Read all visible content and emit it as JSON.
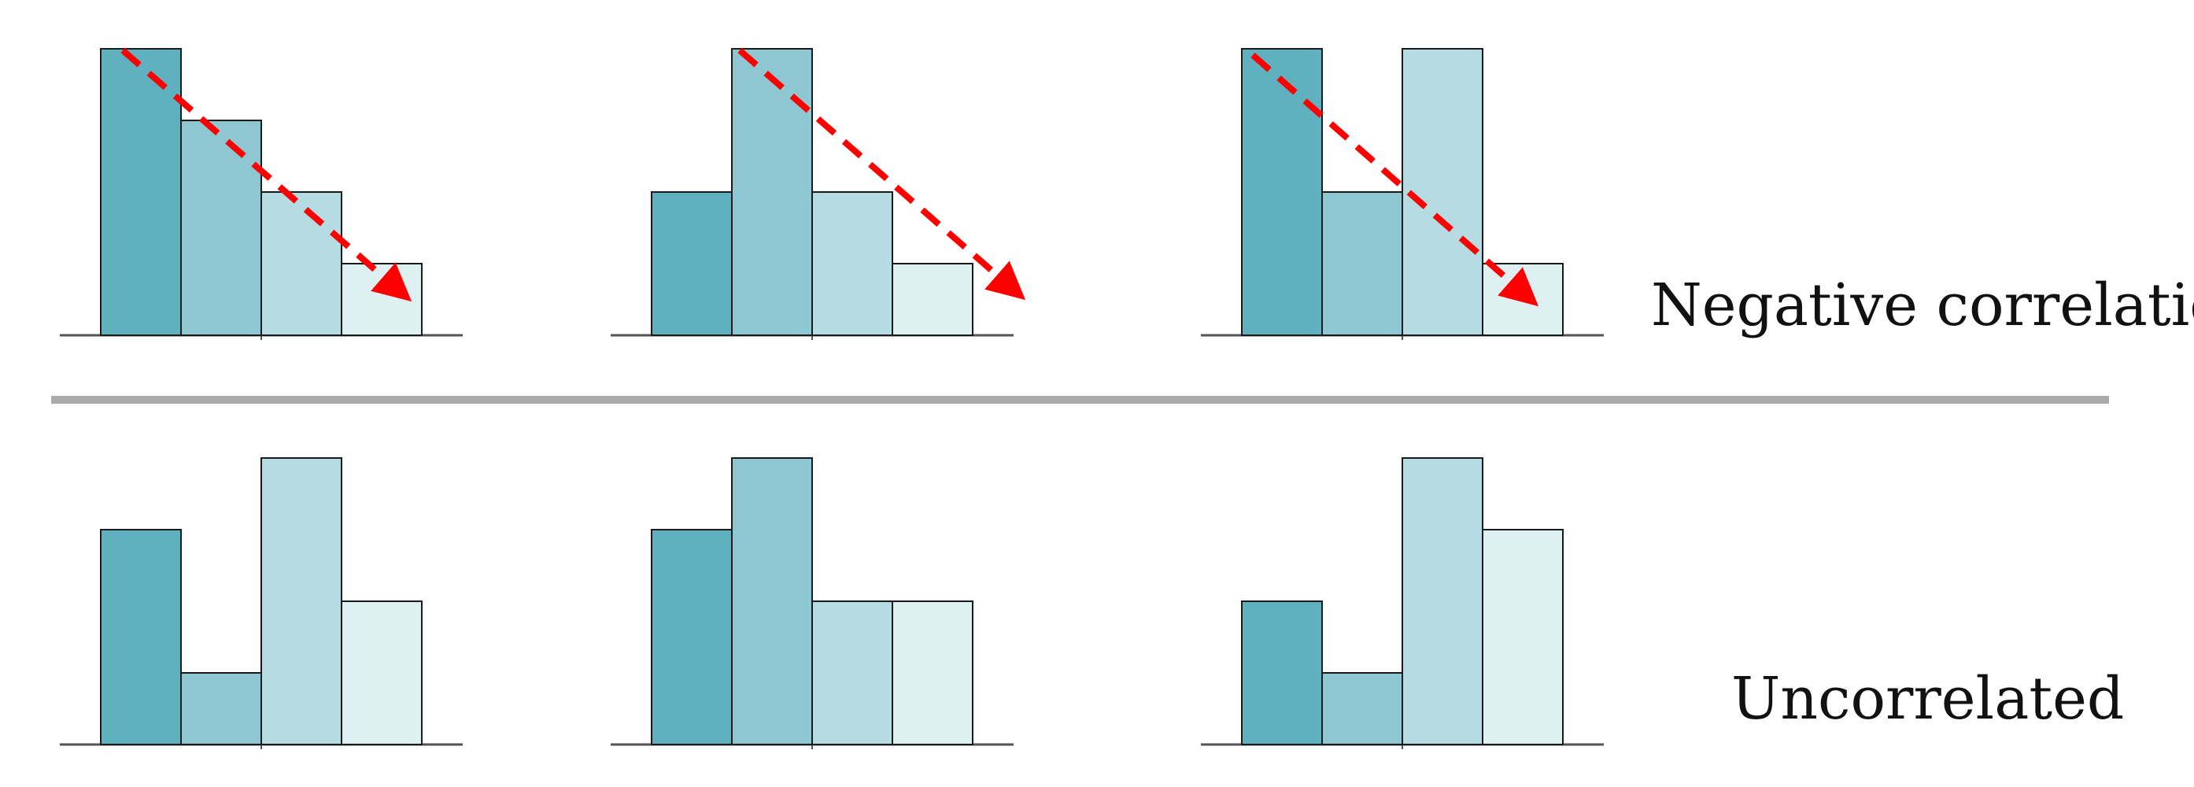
{
  "rows": [
    {
      "label": "Negative correlation",
      "charts": [
        {
          "values": [
            4,
            3,
            2,
            1
          ],
          "trend_arrow": true
        },
        {
          "values": [
            2,
            4,
            2,
            1
          ],
          "trend_arrow": true
        },
        {
          "values": [
            4,
            2,
            4,
            1
          ],
          "trend_arrow": true
        }
      ]
    },
    {
      "label": "Uncorrelated",
      "charts": [
        {
          "values": [
            3,
            1,
            4,
            2
          ],
          "trend_arrow": false
        },
        {
          "values": [
            3,
            4,
            2,
            2
          ],
          "trend_arrow": false
        },
        {
          "values": [
            2,
            1,
            4,
            3
          ],
          "trend_arrow": false
        }
      ]
    }
  ],
  "colors": {
    "bar_shades": [
      "#5fb1bf",
      "#8ec7d2",
      "#b6dce3",
      "#dff0f3"
    ],
    "bar_stroke": "#1a1a1a",
    "axis": "#555555",
    "arrow": "#ff0000",
    "divider": "#aaaaaa"
  }
}
